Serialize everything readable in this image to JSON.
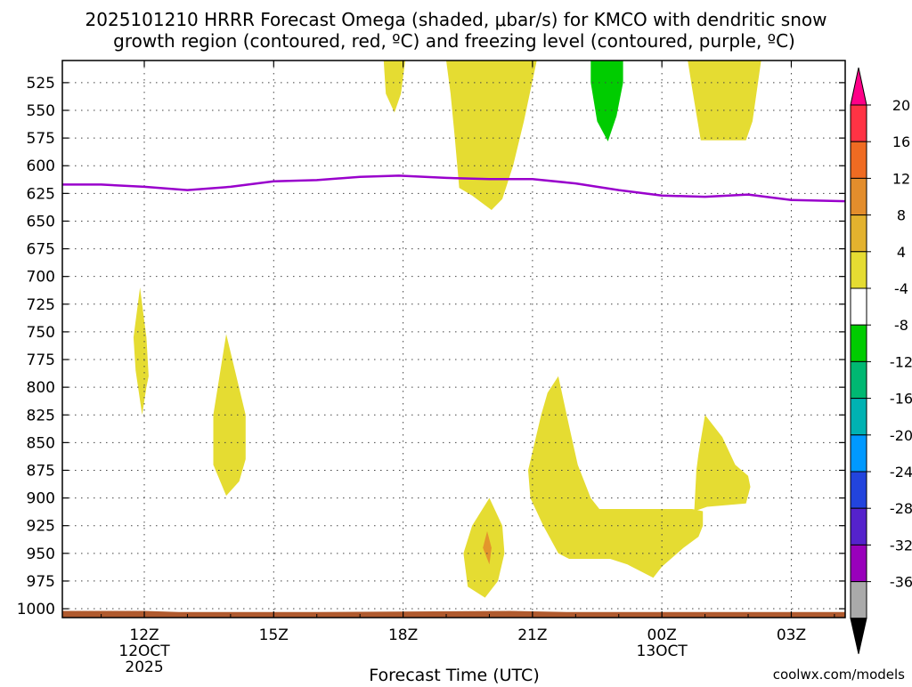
{
  "chart_data": {
    "type": "contour",
    "title_line1": "2025101210 HRRR Forecast Omega (shaded, μbar/s) for KMCO with dendritic snow",
    "title_line2": "growth region (contoured, red, ºC) and freezing level (contoured, purple, ºC)",
    "xlabel": "Forecast Time (UTC)",
    "credit": "coolwx.com/models",
    "x_range_hours": [
      -1.9,
      16.25
    ],
    "y_range_hpa": [
      505,
      1008
    ],
    "y_ticks": [
      525,
      550,
      575,
      600,
      625,
      650,
      675,
      700,
      725,
      750,
      775,
      800,
      825,
      850,
      875,
      900,
      925,
      950,
      975,
      1000
    ],
    "x_ticks": [
      {
        "hour": 0,
        "label": "12Z",
        "date_line1": "12OCT",
        "date_line2": "2025"
      },
      {
        "hour": 3,
        "label": "15Z",
        "date_line1": "",
        "date_line2": ""
      },
      {
        "hour": 6,
        "label": "18Z",
        "date_line1": "",
        "date_line2": ""
      },
      {
        "hour": 9,
        "label": "21Z",
        "date_line1": "",
        "date_line2": ""
      },
      {
        "hour": 12,
        "label": "00Z",
        "date_line1": "13OCT",
        "date_line2": ""
      },
      {
        "hour": 15,
        "label": "03Z",
        "date_line1": "",
        "date_line2": ""
      }
    ],
    "colorbar": {
      "labels": [
        "20",
        "16",
        "12",
        "8",
        "4",
        "-4",
        "-8",
        "-12",
        "-16",
        "-20",
        "-24",
        "-28",
        "-32",
        "-36"
      ],
      "segments": [
        {
          "color": "#ff3344"
        },
        {
          "color": "#ef6b22"
        },
        {
          "color": "#e38d2c"
        },
        {
          "color": "#e3b22e"
        },
        {
          "color": "#e5dc32"
        },
        {
          "color": "#ffffff"
        },
        {
          "color": "#00cc00"
        },
        {
          "color": "#00b872"
        },
        {
          "color": "#00b2b2"
        },
        {
          "color": "#0099ff"
        },
        {
          "color": "#2244dd"
        },
        {
          "color": "#5522cc"
        },
        {
          "color": "#9900bb"
        },
        {
          "color": "#aaaaaa"
        }
      ],
      "top_arrow_color": "#ff0088",
      "bottom_arrow_color": "#000000"
    },
    "colors": {
      "yellow": "#e5dc32",
      "orange": "#e3962c",
      "green": "#00cc00",
      "freezing_level": "#9900cc",
      "ground": "#b05a2e",
      "credit": "#ff3344"
    },
    "omega_regions": [
      {
        "name": "yellow-17z-upper",
        "color": "yellow",
        "points": [
          [
            5.55,
            505
          ],
          [
            6.05,
            505
          ],
          [
            5.95,
            535
          ],
          [
            5.8,
            552
          ],
          [
            5.6,
            535
          ]
        ]
      },
      {
        "name": "yellow-19z-column",
        "color": "yellow",
        "points": [
          [
            7.0,
            505
          ],
          [
            9.1,
            505
          ],
          [
            8.8,
            560
          ],
          [
            8.55,
            600
          ],
          [
            8.3,
            630
          ],
          [
            8.05,
            640
          ],
          [
            7.6,
            627
          ],
          [
            7.3,
            620
          ],
          [
            7.2,
            575
          ],
          [
            7.1,
            535
          ]
        ]
      },
      {
        "name": "green-23z-upper",
        "color": "green",
        "points": [
          [
            10.35,
            505
          ],
          [
            11.1,
            505
          ],
          [
            11.1,
            525
          ],
          [
            10.95,
            555
          ],
          [
            10.75,
            578
          ],
          [
            10.5,
            560
          ],
          [
            10.35,
            525
          ]
        ]
      },
      {
        "name": "yellow-01z-upper",
        "color": "yellow",
        "points": [
          [
            12.6,
            505
          ],
          [
            14.3,
            505
          ],
          [
            14.1,
            560
          ],
          [
            13.95,
            577
          ],
          [
            12.9,
            577
          ],
          [
            12.7,
            530
          ]
        ]
      },
      {
        "name": "yellow-12z-mid",
        "color": "yellow",
        "points": [
          [
            -0.1,
            710
          ],
          [
            0.05,
            755
          ],
          [
            0.1,
            790
          ],
          [
            0.05,
            800
          ],
          [
            -0.05,
            825
          ],
          [
            -0.2,
            785
          ],
          [
            -0.25,
            755
          ]
        ]
      },
      {
        "name": "yellow-14z-low",
        "color": "yellow",
        "points": [
          [
            1.9,
            752
          ],
          [
            2.35,
            825
          ],
          [
            2.35,
            865
          ],
          [
            2.2,
            885
          ],
          [
            1.9,
            898
          ],
          [
            1.6,
            870
          ],
          [
            1.6,
            825
          ]
        ]
      },
      {
        "name": "yellow-20z-sfc",
        "color": "yellow",
        "points": [
          [
            8.0,
            900
          ],
          [
            8.3,
            925
          ],
          [
            8.35,
            950
          ],
          [
            8.2,
            975
          ],
          [
            7.9,
            990
          ],
          [
            7.5,
            980
          ],
          [
            7.4,
            950
          ],
          [
            7.6,
            925
          ]
        ]
      },
      {
        "name": "yellow-23z-to-03z-low",
        "color": "yellow",
        "points": [
          [
            9.6,
            790
          ],
          [
            9.85,
            835
          ],
          [
            10.05,
            870
          ],
          [
            10.35,
            900
          ],
          [
            10.55,
            910
          ],
          [
            12.7,
            910
          ],
          [
            12.95,
            912
          ],
          [
            12.95,
            925
          ],
          [
            12.85,
            935
          ],
          [
            12.5,
            945
          ],
          [
            12.0,
            962
          ],
          [
            11.8,
            972
          ],
          [
            11.2,
            960
          ],
          [
            10.8,
            955
          ],
          [
            9.85,
            955
          ],
          [
            9.6,
            950
          ],
          [
            9.25,
            925
          ],
          [
            8.95,
            900
          ],
          [
            8.9,
            875
          ],
          [
            9.2,
            825
          ],
          [
            9.35,
            805
          ]
        ]
      },
      {
        "name": "yellow-02z-low",
        "color": "yellow",
        "points": [
          [
            13.0,
            825
          ],
          [
            13.4,
            845
          ],
          [
            13.7,
            870
          ],
          [
            14.0,
            880
          ],
          [
            14.05,
            890
          ],
          [
            13.95,
            905
          ],
          [
            13.05,
            908
          ],
          [
            12.75,
            912
          ],
          [
            12.8,
            875
          ],
          [
            12.85,
            860
          ]
        ]
      },
      {
        "name": "orange-20z-core",
        "color": "orange",
        "points": [
          [
            7.95,
            930
          ],
          [
            8.05,
            945
          ],
          [
            8.0,
            960
          ],
          [
            7.85,
            945
          ]
        ]
      }
    ],
    "freezing_level": {
      "hours": [
        -1.9,
        -1,
        0,
        1,
        2,
        3,
        4,
        5,
        5.9,
        7,
        8,
        9,
        10,
        11,
        12,
        13,
        14,
        15,
        16.25
      ],
      "pressure": [
        617,
        617,
        619,
        622,
        619,
        614,
        613,
        610,
        609,
        611,
        612,
        612,
        616,
        622,
        627,
        628,
        626,
        631,
        632
      ]
    },
    "ground_strip": {
      "hours": [
        -1.9,
        0,
        0.8,
        4,
        8.5,
        9.8,
        16.25
      ],
      "pressure_top": [
        1002,
        1002,
        1003,
        1003,
        1002,
        1003,
        1003
      ],
      "pressure_bottom": 1008
    }
  }
}
